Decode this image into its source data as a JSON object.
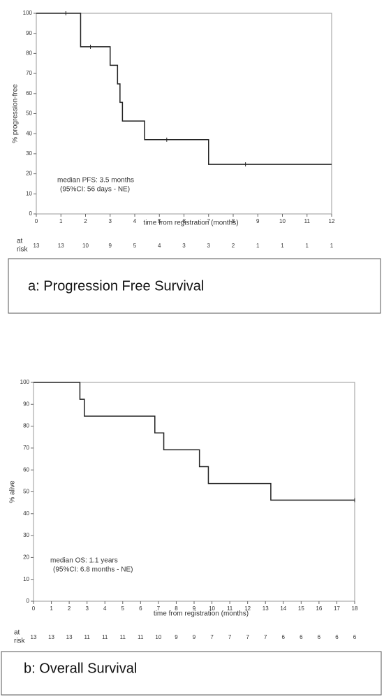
{
  "chart_data": [
    {
      "type": "step",
      "caption": "a: Progression Free Survival",
      "ylabel": "% progression-free",
      "xlabel": "time from registration (months)",
      "annotation": [
        "median PFS: 3.5 months",
        "(95%CI: 56 days - NE)"
      ],
      "x": [
        0,
        1.8,
        3.0,
        3.3,
        3.4,
        3.5,
        4.4,
        7.0,
        12
      ],
      "values": [
        100,
        83.3,
        74.1,
        64.8,
        55.6,
        46.3,
        37,
        24.7,
        24.7
      ],
      "censored": {
        "x": [
          1.2,
          2.2,
          5.3,
          8.5
        ],
        "values": [
          100,
          83.3,
          37,
          24.7
        ]
      },
      "xlim": [
        0,
        12
      ],
      "xticks": [
        0,
        1,
        2,
        3,
        4,
        5,
        6,
        7,
        8,
        9,
        10,
        11,
        12
      ],
      "ylim": [
        0,
        100
      ],
      "yticks": [
        0,
        10,
        20,
        30,
        40,
        50,
        60,
        70,
        80,
        90,
        100
      ],
      "at_risk_label": [
        "at",
        "risk"
      ],
      "at_risk": [
        13,
        13,
        10,
        9,
        5,
        4,
        3,
        3,
        2,
        1,
        1,
        1,
        1
      ],
      "color": "#222222"
    },
    {
      "type": "step",
      "caption": "b: Overall  Survival",
      "ylabel": "% alive",
      "xlabel": "time from registration (months)",
      "annotation": [
        "median OS: 1.1 years",
        "(95%CI: 6.8 months - NE)"
      ],
      "x": [
        0,
        2.6,
        2.85,
        6.8,
        7.3,
        9.3,
        9.8,
        13.3,
        18
      ],
      "values": [
        100,
        92.3,
        84.6,
        76.9,
        69.2,
        61.5,
        53.8,
        46.2,
        46.2
      ],
      "censored": {
        "x": [
          18
        ],
        "values": [
          46.2
        ]
      },
      "xlim": [
        0,
        18
      ],
      "xticks": [
        0,
        1,
        2,
        3,
        4,
        5,
        6,
        7,
        8,
        9,
        10,
        11,
        12,
        13,
        14,
        15,
        16,
        17,
        18
      ],
      "ylim": [
        0,
        100
      ],
      "yticks": [
        0,
        10,
        20,
        30,
        40,
        50,
        60,
        70,
        80,
        90,
        100
      ],
      "at_risk_label": [
        "at",
        "risk"
      ],
      "at_risk": [
        13,
        13,
        13,
        11,
        11,
        11,
        11,
        10,
        9,
        9,
        7,
        7,
        7,
        7,
        6,
        6,
        6,
        6,
        6
      ],
      "color": "#222222"
    }
  ]
}
